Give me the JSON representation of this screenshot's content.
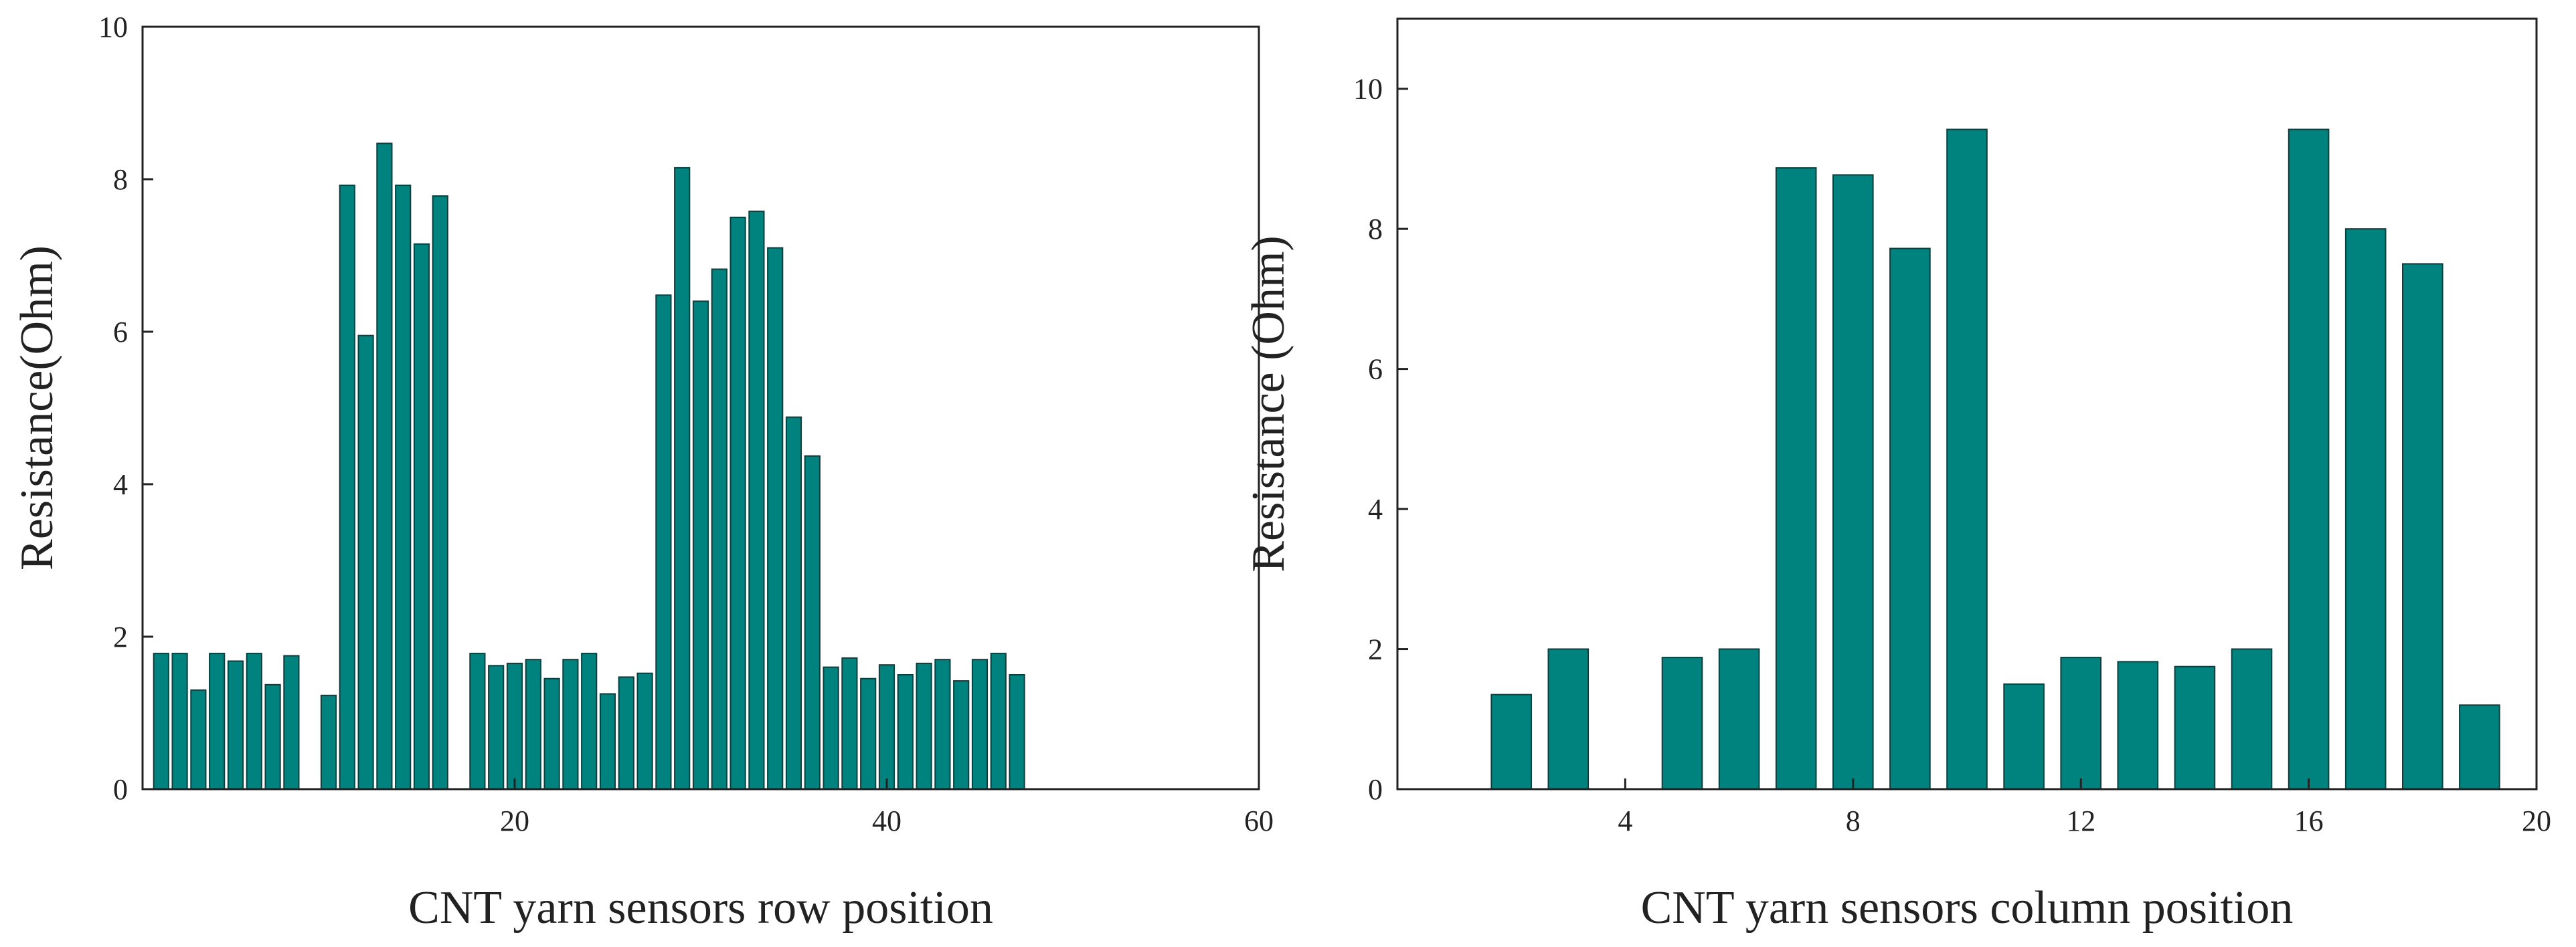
{
  "colors": {
    "bar": "#00827f",
    "bar_edge": "#0a3f3e",
    "axis": "#222222"
  },
  "chart_data": [
    {
      "type": "bar",
      "xlabel": "CNT yarn sensors row position",
      "ylabel": "Resistance(Ohm)",
      "xlim": [
        0,
        60
      ],
      "ylim": [
        0,
        10
      ],
      "xticks": [
        20,
        40,
        60
      ],
      "yticks": [
        0,
        2,
        4,
        6,
        8,
        10
      ],
      "bar_width": 0.8,
      "x": [
        1,
        2,
        3,
        4,
        5,
        6,
        7,
        8,
        9,
        10,
        11,
        12,
        13,
        14,
        15,
        16,
        17,
        18,
        19,
        20,
        21,
        22,
        23,
        24,
        25,
        26,
        27,
        28,
        29,
        30,
        31,
        32,
        33,
        34,
        35,
        36,
        37,
        38,
        39,
        40,
        41,
        42,
        43,
        44,
        45,
        46,
        47
      ],
      "values": [
        1.78,
        1.78,
        1.3,
        1.78,
        1.68,
        1.78,
        1.37,
        1.75,
        0,
        1.23,
        7.92,
        5.95,
        8.47,
        7.92,
        7.15,
        7.78,
        0,
        1.78,
        1.62,
        1.65,
        1.7,
        1.45,
        1.7,
        1.78,
        1.25,
        1.47,
        1.52,
        6.48,
        8.15,
        6.4,
        6.82,
        7.5,
        7.58,
        7.1,
        4.88,
        4.37,
        1.6,
        1.72,
        1.45,
        1.63,
        1.5,
        1.65,
        1.7,
        1.42,
        1.7,
        1.78,
        1.5
      ]
    },
    {
      "type": "bar",
      "xlabel": "CNT yarn sensors column position",
      "ylabel": "Resistance (Ohm)",
      "xlim": [
        0,
        20
      ],
      "ylim": [
        0,
        11
      ],
      "xticks": [
        4,
        8,
        12,
        16,
        20
      ],
      "yticks": [
        0,
        2,
        4,
        6,
        8,
        10
      ],
      "bar_width": 0.7,
      "x": [
        2,
        3,
        4,
        5,
        6,
        7,
        8,
        9,
        10,
        11,
        12,
        13,
        14,
        15,
        16,
        17,
        18,
        19
      ],
      "values": [
        1.35,
        2.0,
        0,
        1.88,
        2.0,
        8.87,
        8.77,
        7.72,
        9.42,
        1.5,
        1.88,
        1.82,
        1.75,
        2.0,
        9.42,
        8.0,
        7.5,
        1.2
      ]
    }
  ]
}
